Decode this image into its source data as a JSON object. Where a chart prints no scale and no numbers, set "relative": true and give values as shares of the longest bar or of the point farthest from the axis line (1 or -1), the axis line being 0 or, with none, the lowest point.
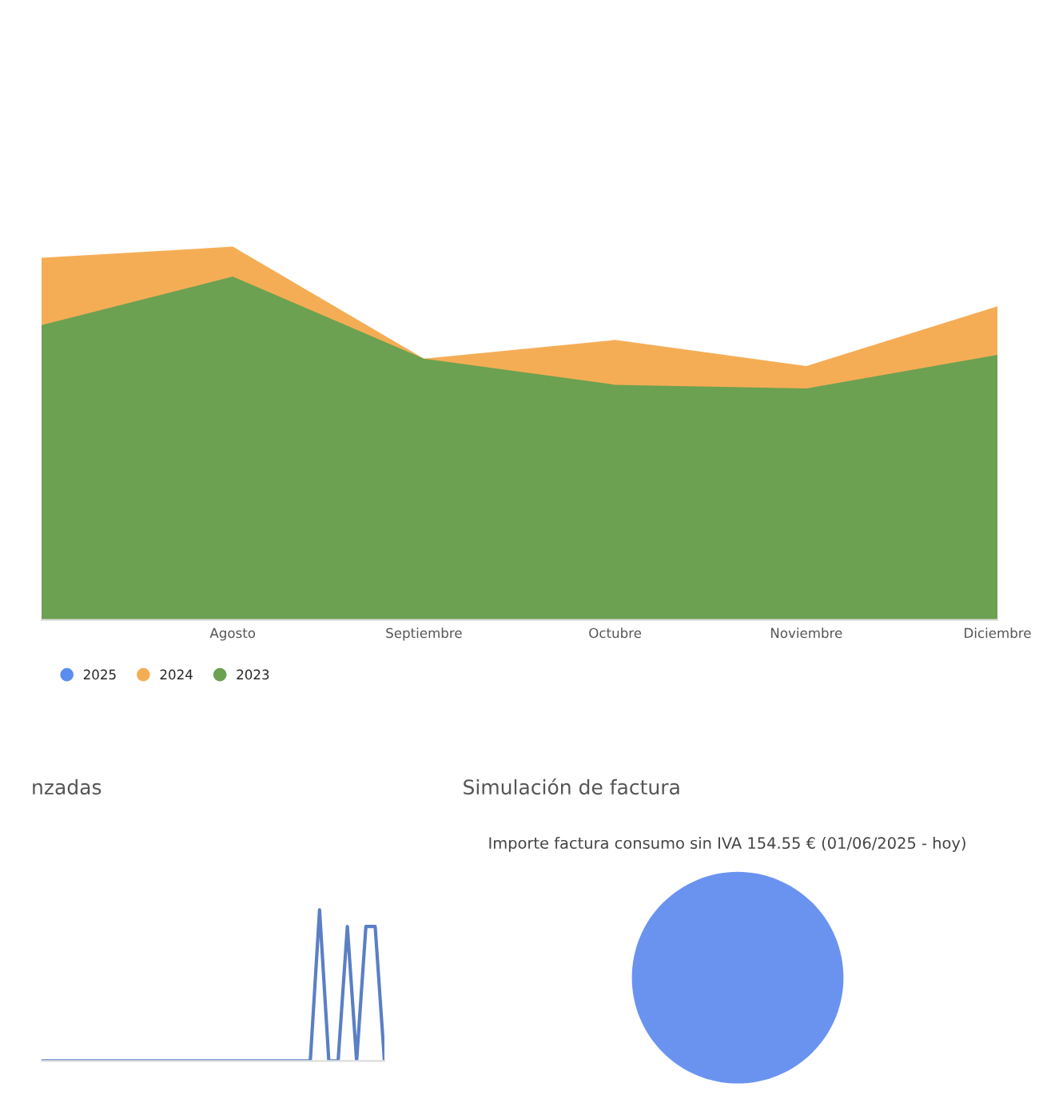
{
  "chart_data": [
    {
      "type": "area",
      "relative": true,
      "categories": [
        null,
        "Agosto",
        "Septiembre",
        "Octubre",
        "Noviembre",
        "Diciembre"
      ],
      "legend": "bottom left",
      "series": [
        {
          "name": "2025",
          "color": "#5b8def",
          "values": [
            null,
            null,
            null,
            null,
            null,
            null
          ]
        },
        {
          "name": "2024",
          "color": "#f5ad55",
          "values": [
            0.97,
            1,
            0.7,
            0.75,
            0.68,
            0.84
          ]
        },
        {
          "name": "2023",
          "color": "#6ba151",
          "values": [
            0.79,
            0.92,
            0.7,
            0.63,
            0.62,
            0.71
          ]
        }
      ]
    },
    {
      "type": "line",
      "relative": true,
      "title": "nzadas",
      "categories": [
        null,
        null,
        null,
        null,
        null,
        null,
        null,
        null,
        null,
        null,
        null,
        null,
        null,
        null,
        null,
        null,
        null,
        null,
        null,
        null,
        null,
        null,
        null,
        null,
        null,
        null,
        null,
        null,
        null,
        null,
        null,
        null,
        null,
        null,
        null,
        null,
        null,
        null
      ],
      "series": [
        {
          "color": "#5a7fc4",
          "values": [
            0,
            0,
            0,
            0,
            0,
            0,
            0,
            0,
            0,
            0,
            0,
            0,
            0,
            0,
            0,
            0,
            0,
            0,
            0,
            0,
            0,
            0,
            0,
            0,
            0,
            0,
            0,
            0,
            0,
            0,
            1,
            0,
            0,
            0.89,
            0,
            0.89,
            0.89,
            0
          ]
        }
      ]
    },
    {
      "type": "pie",
      "title": "Simulación de factura",
      "subtitle": "Importe factura consumo sin IVA 154.55 € (01/06/2025 - hoy)",
      "categories": [
        null
      ],
      "values": [
        100
      ],
      "colors": [
        "#6a93f0"
      ]
    }
  ]
}
